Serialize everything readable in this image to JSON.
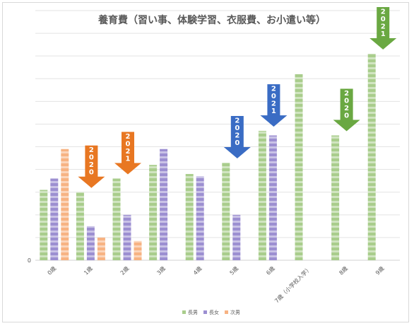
{
  "chart_data": {
    "type": "bar",
    "title": "養育費（習い事、体験学習、衣服費、お小遣い等）",
    "y_zero_label": "0",
    "ylim": [
      0,
      11
    ],
    "grid": true,
    "legend_position": "bottom",
    "categories": [
      "0歳",
      "1歳",
      "2歳",
      "3歳",
      "4歳",
      "5歳",
      "6歳",
      "7歳（小学校入学）",
      "8歳",
      "9歳"
    ],
    "series": [
      {
        "name": "長男",
        "color": "#a9cd8c",
        "values": [
          3.1,
          3.0,
          3.6,
          4.2,
          3.8,
          4.3,
          5.7,
          8.2,
          5.5,
          9.1
        ]
      },
      {
        "name": "長女",
        "color": "#9c8fd1",
        "values": [
          3.6,
          1.5,
          2.0,
          4.9,
          3.7,
          2.0,
          5.5,
          null,
          null,
          null
        ]
      },
      {
        "name": "次男",
        "color": "#f7b383",
        "values": [
          4.9,
          1.0,
          0.85,
          null,
          null,
          null,
          null,
          null,
          null,
          null
        ]
      }
    ],
    "annotations": [
      {
        "label": "2020",
        "category": "1歳",
        "color": "#e87722"
      },
      {
        "label": "2021",
        "category": "2歳",
        "color": "#e87722"
      },
      {
        "label": "2020",
        "category": "5歳",
        "color": "#3a6cc4"
      },
      {
        "label": "2021",
        "category": "6歳",
        "color": "#3a6cc4"
      },
      {
        "label": "2020",
        "category": "8歳",
        "color": "#6aa842"
      },
      {
        "label": "2021",
        "category": "9歳",
        "color": "#6aa842"
      }
    ]
  }
}
